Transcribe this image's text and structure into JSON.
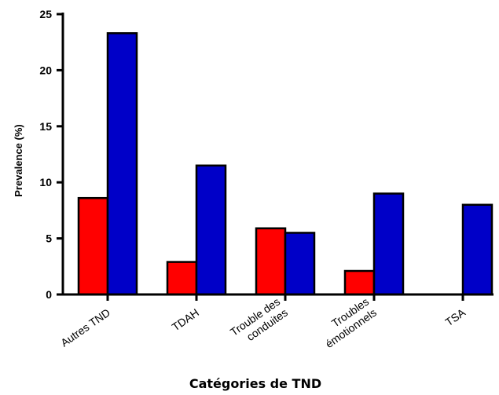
{
  "chart_data": {
    "type": "bar",
    "title": "",
    "xlabel": "Catégories de TND",
    "ylabel": "Prevalence (%)",
    "ylim": [
      0,
      25
    ],
    "yticks": [
      0,
      5,
      10,
      15,
      20,
      25
    ],
    "grid": false,
    "legend": "none",
    "categories": [
      [
        "Autres TND"
      ],
      [
        "TDAH"
      ],
      [
        "Trouble des",
        "conduites"
      ],
      [
        "Troubles",
        "émotionnels"
      ],
      [
        "TSA"
      ]
    ],
    "series": [
      {
        "color": "#ff0000",
        "values": [
          8.6,
          2.9,
          5.9,
          2.1,
          0
        ]
      },
      {
        "color": "#0000c8",
        "values": [
          23.3,
          11.5,
          5.5,
          9.0,
          8.0
        ]
      }
    ]
  }
}
